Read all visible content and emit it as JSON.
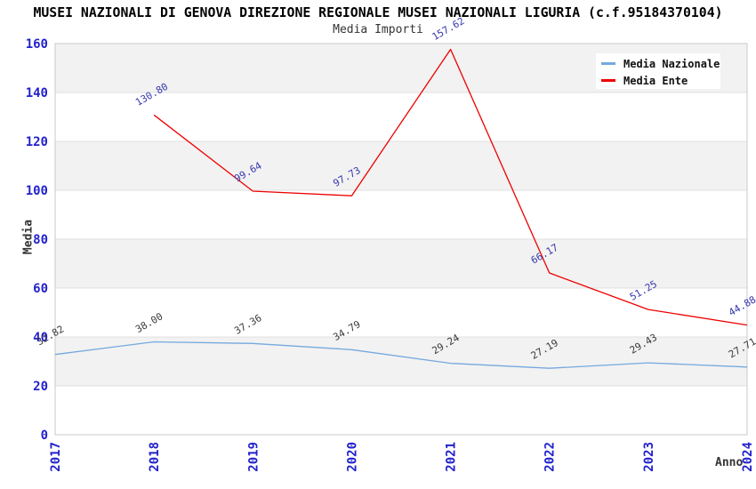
{
  "header": {
    "title": "MUSEI NAZIONALI DI GENOVA DIREZIONE REGIONALE MUSEI NAZIONALI LIGURIA (c.f.95184370104)",
    "subtitle": "Media Importi"
  },
  "axes": {
    "y_title": "Media",
    "x_title": "Anno",
    "y_ticks": [
      "0",
      "20",
      "40",
      "60",
      "80",
      "100",
      "120",
      "140",
      "160"
    ],
    "x_ticks": [
      "2017",
      "2018",
      "2019",
      "2020",
      "2021",
      "2022",
      "2023",
      "2024"
    ]
  },
  "legend": {
    "items": [
      {
        "label": "Media Nazionale",
        "color": "#74a9dd"
      },
      {
        "label": "Media Ente",
        "color": "#ee0000"
      }
    ]
  },
  "chart_data": {
    "type": "line",
    "title": "Media Importi",
    "xlabel": "Anno",
    "ylabel": "Media",
    "categories": [
      "2017",
      "2018",
      "2019",
      "2020",
      "2021",
      "2022",
      "2023",
      "2024"
    ],
    "ylim": [
      0,
      160
    ],
    "ytick_step": 20,
    "grid": "alternating gray/white horizontal bands every 20 units, light gridlines",
    "legend_position": "top-right",
    "data_label_rotation_deg": -30,
    "series": [
      {
        "name": "Media Nazionale",
        "color": "#74a9dd",
        "label_color": "#3a3a3a",
        "values": [
          32.82,
          38.0,
          37.36,
          34.79,
          29.24,
          27.19,
          29.43,
          27.71
        ]
      },
      {
        "name": "Media Ente",
        "color": "#ee0000",
        "label_color": "#3737ae",
        "values": [
          null,
          130.8,
          99.64,
          97.73,
          157.62,
          66.17,
          51.25,
          44.88
        ]
      }
    ]
  },
  "colors": {
    "tick_label": "#2222cc",
    "band_gray": "#f2f2f2",
    "band_white": "#ffffff",
    "gridline": "#e0e0e0",
    "plot_border": "#c9c9c9",
    "background": "#ffffff"
  }
}
